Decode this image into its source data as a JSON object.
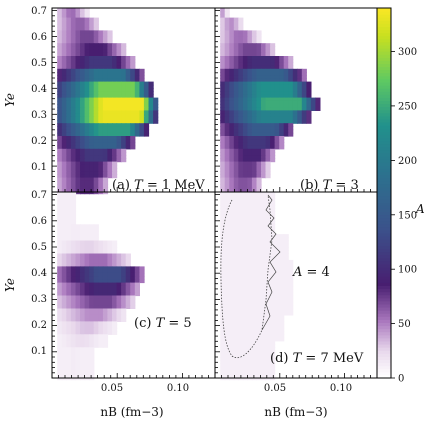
{
  "figure": {
    "colorbar": {
      "label": "A",
      "range": [
        0,
        340
      ],
      "ticks": [
        "0",
        "50",
        "100",
        "150",
        "200",
        "250",
        "300"
      ],
      "tick_values": [
        0,
        50,
        100,
        150,
        200,
        250,
        300
      ]
    },
    "axes": {
      "y_label": "Ye",
      "x_label": "nB (fm−3)",
      "y_ticks": [
        "0.1",
        "0.2",
        "0.3",
        "0.4",
        "0.5",
        "0.6",
        "0.7"
      ],
      "x_ticks": [
        "0.05",
        "0.10"
      ]
    },
    "panels": [
      {
        "label": "(a) T = 1 MeV",
        "label_prefix": "(a) ",
        "label_var": "T",
        "label_suffix": " = 1 MeV"
      },
      {
        "label": "(b) T = 3",
        "label_prefix": "(b) ",
        "label_var": "T",
        "label_suffix": " = 3"
      },
      {
        "label": "(c) T = 5",
        "label_prefix": "(c) ",
        "label_var": "T",
        "label_suffix": " = 5"
      },
      {
        "label": "(d) T = 7 MeV",
        "label_prefix": "(d) ",
        "label_var": "T",
        "label_suffix": " = 7 MeV"
      }
    ],
    "annotation": {
      "text": "A = 4",
      "var": "A",
      "suffix": " = 4"
    }
  },
  "chart_data": [
    {
      "type": "heatmap",
      "panel": "(a) T = 1 MeV",
      "xlabel": "nB (fm−3)",
      "ylabel": "Ye",
      "xlim": [
        0,
        0.125
      ],
      "ylim": [
        0.01,
        0.7
      ],
      "colorscale": "viridis",
      "value_range": [
        0,
        340
      ],
      "rows": [
        {
          "ye": 0.69,
          "n_max": 0.025,
          "peak": 55,
          "fall": 0.8
        },
        {
          "ye": 0.65,
          "n_max": 0.035,
          "peak": 60,
          "fall": 0.7
        },
        {
          "ye": 0.6,
          "n_max": 0.045,
          "peak": 70,
          "fall": 0.7
        },
        {
          "ye": 0.55,
          "n_max": 0.055,
          "peak": 85,
          "fall": 0.6
        },
        {
          "ye": 0.5,
          "n_max": 0.062,
          "peak": 110,
          "fall": 0.6
        },
        {
          "ye": 0.45,
          "n_max": 0.068,
          "peak": 190,
          "fall": 0.45
        },
        {
          "ye": 0.4,
          "n_max": 0.075,
          "peak": 280,
          "fall": 0.35
        },
        {
          "ye": 0.35,
          "n_max": 0.08,
          "peak": 335,
          "fall": 0.3
        },
        {
          "ye": 0.3,
          "n_max": 0.078,
          "peak": 330,
          "fall": 0.3
        },
        {
          "ye": 0.25,
          "n_max": 0.072,
          "peak": 240,
          "fall": 0.4
        },
        {
          "ye": 0.2,
          "n_max": 0.063,
          "peak": 160,
          "fall": 0.5
        },
        {
          "ye": 0.15,
          "n_max": 0.055,
          "peak": 110,
          "fall": 0.6
        },
        {
          "ye": 0.1,
          "n_max": 0.048,
          "peak": 90,
          "fall": 0.6
        },
        {
          "ye": 0.05,
          "n_max": 0.042,
          "peak": 80,
          "fall": 0.6
        }
      ]
    },
    {
      "type": "heatmap",
      "panel": "(b) T = 3",
      "xlabel": "nB (fm−3)",
      "ylabel": "Ye",
      "xlim": [
        0,
        0.125
      ],
      "ylim": [
        0.01,
        0.7
      ],
      "colorscale": "viridis",
      "value_range": [
        0,
        340
      ],
      "rows": [
        {
          "ye": 0.69,
          "n_max": 0.008,
          "peak": 40,
          "fall": 0.9
        },
        {
          "ye": 0.65,
          "n_max": 0.02,
          "peak": 45,
          "fall": 0.8
        },
        {
          "ye": 0.6,
          "n_max": 0.032,
          "peak": 55,
          "fall": 0.7
        },
        {
          "ye": 0.55,
          "n_max": 0.045,
          "peak": 70,
          "fall": 0.6
        },
        {
          "ye": 0.5,
          "n_max": 0.058,
          "peak": 100,
          "fall": 0.55
        },
        {
          "ye": 0.45,
          "n_max": 0.068,
          "peak": 160,
          "fall": 0.5
        },
        {
          "ye": 0.4,
          "n_max": 0.072,
          "peak": 230,
          "fall": 0.4
        },
        {
          "ye": 0.35,
          "n_max": 0.078,
          "peak": 250,
          "fall": 0.35
        },
        {
          "ye": 0.3,
          "n_max": 0.072,
          "peak": 210,
          "fall": 0.4
        },
        {
          "ye": 0.25,
          "n_max": 0.06,
          "peak": 150,
          "fall": 0.5
        },
        {
          "ye": 0.2,
          "n_max": 0.052,
          "peak": 110,
          "fall": 0.55
        },
        {
          "ye": 0.15,
          "n_max": 0.046,
          "peak": 90,
          "fall": 0.6
        },
        {
          "ye": 0.1,
          "n_max": 0.04,
          "peak": 75,
          "fall": 0.6
        },
        {
          "ye": 0.05,
          "n_max": 0.035,
          "peak": 65,
          "fall": 0.6
        }
      ]
    },
    {
      "type": "heatmap",
      "panel": "(c) T = 5",
      "xlabel": "nB (fm−3)",
      "ylabel": "Ye",
      "xlim": [
        0,
        0.125
      ],
      "ylim": [
        0.01,
        0.7
      ],
      "colorscale": "viridis",
      "value_range": [
        0,
        340
      ],
      "rows": [
        {
          "ye": 0.62,
          "n_max": 0.015,
          "peak": 6,
          "fall": 1.0
        },
        {
          "ye": 0.55,
          "n_max": 0.032,
          "peak": 12,
          "fall": 0.9
        },
        {
          "ye": 0.5,
          "n_max": 0.048,
          "peak": 25,
          "fall": 0.8
        },
        {
          "ye": 0.45,
          "n_max": 0.06,
          "peak": 55,
          "fall": 0.7
        },
        {
          "ye": 0.4,
          "n_max": 0.07,
          "peak": 130,
          "fall": 0.55
        },
        {
          "ye": 0.35,
          "n_max": 0.067,
          "peak": 95,
          "fall": 0.6
        },
        {
          "ye": 0.3,
          "n_max": 0.062,
          "peak": 70,
          "fall": 0.6
        },
        {
          "ye": 0.25,
          "n_max": 0.055,
          "peak": 45,
          "fall": 0.7
        },
        {
          "ye": 0.2,
          "n_max": 0.048,
          "peak": 30,
          "fall": 0.8
        },
        {
          "ye": 0.15,
          "n_max": 0.04,
          "peak": 20,
          "fall": 0.8
        },
        {
          "ye": 0.1,
          "n_max": 0.03,
          "peak": 12,
          "fall": 0.9
        }
      ]
    },
    {
      "type": "heatmap",
      "panel": "(d) T = 7 MeV",
      "xlabel": "nB (fm−3)",
      "ylabel": "Ye",
      "xlim": [
        0,
        0.125
      ],
      "ylim": [
        0.01,
        0.7
      ],
      "colorscale": "viridis",
      "value_range": [
        0,
        340
      ],
      "rows": [
        {
          "ye": 0.6,
          "n_max": 0.045,
          "peak": 4,
          "fall": 1.0
        },
        {
          "ye": 0.5,
          "n_max": 0.055,
          "peak": 5,
          "fall": 1.0
        },
        {
          "ye": 0.4,
          "n_max": 0.06,
          "peak": 6,
          "fall": 1.0
        },
        {
          "ye": 0.3,
          "n_max": 0.058,
          "peak": 5,
          "fall": 1.0
        },
        {
          "ye": 0.2,
          "n_max": 0.052,
          "peak": 4,
          "fall": 1.0
        },
        {
          "ye": 0.1,
          "n_max": 0.045,
          "peak": 3,
          "fall": 1.0
        }
      ]
    }
  ]
}
